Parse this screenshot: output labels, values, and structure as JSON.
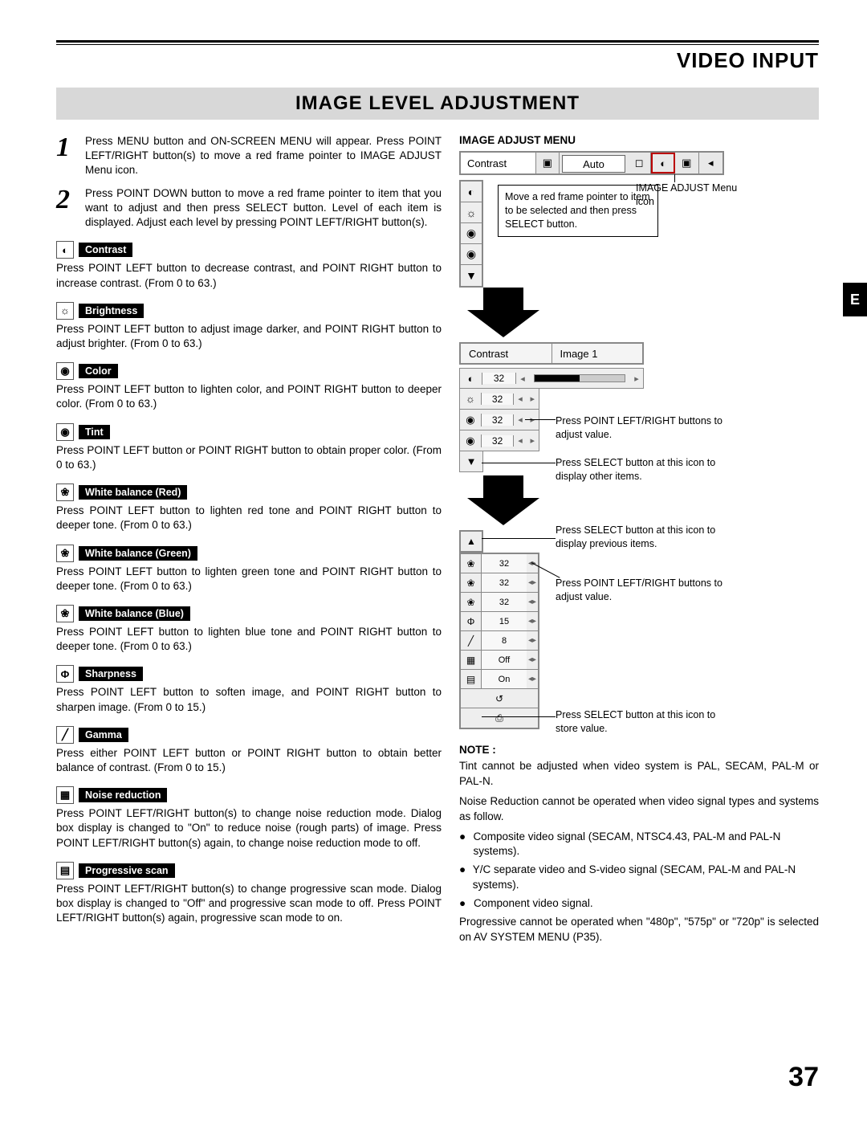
{
  "header": {
    "video_input": "VIDEO INPUT",
    "section_title": "IMAGE LEVEL ADJUSTMENT"
  },
  "side_tab": "E",
  "page_number": "37",
  "steps": [
    {
      "num": "1",
      "text": "Press MENU button and ON-SCREEN MENU will appear.  Press POINT LEFT/RIGHT button(s) to move a red frame pointer to IMAGE ADJUST Menu icon."
    },
    {
      "num": "2",
      "text": "Press POINT DOWN button to move a red frame pointer to item that you want to adjust and then press SELECT button.  Level of each item is displayed.  Adjust each level by pressing POINT LEFT/RIGHT button(s)."
    }
  ],
  "items": [
    {
      "icon": "◐",
      "label": "Contrast",
      "desc": "Press POINT LEFT button to decrease contrast, and POINT RIGHT button to increase contrast.  (From 0 to 63.)"
    },
    {
      "icon": "☼",
      "label": "Brightness",
      "desc": "Press POINT LEFT button to adjust image darker, and POINT RIGHT button to adjust brighter.  (From 0 to 63.)"
    },
    {
      "icon": "◉",
      "label": "Color",
      "desc": "Press POINT LEFT button to lighten color, and POINT RIGHT button to deeper color.  (From 0 to 63.)"
    },
    {
      "icon": "◉",
      "label": "Tint",
      "desc": "Press POINT LEFT button or POINT RIGHT button to obtain proper color.  (From 0 to 63.)"
    },
    {
      "icon": "❀",
      "label": "White balance (Red)",
      "desc": "Press POINT LEFT button to lighten red tone and POINT RIGHT button to deeper tone.  (From 0 to 63.)"
    },
    {
      "icon": "❀",
      "label": "White balance (Green)",
      "desc": "Press POINT LEFT button to lighten green tone and POINT RIGHT button to deeper tone.  (From 0 to 63.)"
    },
    {
      "icon": "❀",
      "label": "White balance (Blue)",
      "desc": "Press POINT LEFT button to lighten blue tone and POINT RIGHT button to deeper tone.  (From 0 to 63.)"
    },
    {
      "icon": "Φ",
      "label": "Sharpness",
      "desc": "Press POINT LEFT button to soften image, and POINT RIGHT button to sharpen image.  (From 0 to 15.)"
    },
    {
      "icon": "╱",
      "label": "Gamma",
      "desc": "Press either POINT LEFT button or POINT RIGHT button to obtain better balance of contrast.  (From 0 to 15.)"
    },
    {
      "icon": "▦",
      "label": "Noise reduction",
      "desc": "Press POINT LEFT/RIGHT button(s) to change noise reduction mode. Dialog box display is changed to \"On\" to reduce noise (rough parts) of image. Press POINT LEFT/RIGHT button(s) again, to change noise reduction mode to off."
    },
    {
      "icon": "▤",
      "label": "Progressive scan",
      "desc": "Press POINT LEFT/RIGHT button(s) to change progressive scan mode.  Dialog box display is changed to \"Off\" and progressive scan mode to off. Press POINT LEFT/RIGHT button(s) again, progressive scan mode to on."
    }
  ],
  "right": {
    "menu_title": "IMAGE ADJUST MENU",
    "menu_bar_label": "Contrast",
    "menu_bar_auto": "Auto",
    "icon_stack1": [
      "◐",
      "☼",
      "◉",
      "◉",
      "▼"
    ],
    "callout1": "Move a red frame pointer to item to be selected and then press SELECT button.",
    "icon_label": "IMAGE ADJUST Menu icon",
    "panel2_left": "Contrast",
    "panel2_right": "Image 1",
    "adjust_group1": [
      {
        "ic": "◐",
        "v": "32"
      },
      {
        "ic": "☼",
        "v": "32"
      },
      {
        "ic": "◉",
        "v": "32"
      },
      {
        "ic": "◉",
        "v": "32"
      }
    ],
    "down_icon": "▼",
    "callout2": "Press POINT LEFT/RIGHT buttons to adjust value.",
    "callout3": "Press SELECT button at this icon to display other items.",
    "callout4": "Press SELECT button at this icon to display previous items.",
    "up_icon": "▲",
    "adjust_group2": [
      {
        "ic": "❀",
        "v": "32"
      },
      {
        "ic": "❀",
        "v": "32"
      },
      {
        "ic": "❀",
        "v": "32"
      },
      {
        "ic": "Φ",
        "v": "15"
      },
      {
        "ic": "╱",
        "v": "8"
      },
      {
        "ic": "▦",
        "v": "Off"
      },
      {
        "ic": "▤",
        "v": "On"
      },
      {
        "ic": "↺",
        "v": ""
      },
      {
        "ic": "⎙",
        "v": ""
      }
    ],
    "callout5": "Press POINT LEFT/RIGHT buttons to adjust value.",
    "callout6": "Press SELECT button at this icon to store value."
  },
  "notes": {
    "title": "NOTE :",
    "p1": "Tint cannot be adjusted when video system is PAL, SECAM, PAL-M or PAL-N.",
    "p2": "Noise Reduction cannot be operated when video signal types and systems as follow.",
    "bullets": [
      "Composite video signal (SECAM, NTSC4.43, PAL-M and PAL-N systems).",
      "Y/C separate video and S-video signal (SECAM, PAL-M and PAL-N systems).",
      "Component video signal."
    ],
    "p3": "Progressive cannot be operated when \"480p\", \"575p\" or \"720p\" is selected on AV SYSTEM MENU (P35)."
  }
}
